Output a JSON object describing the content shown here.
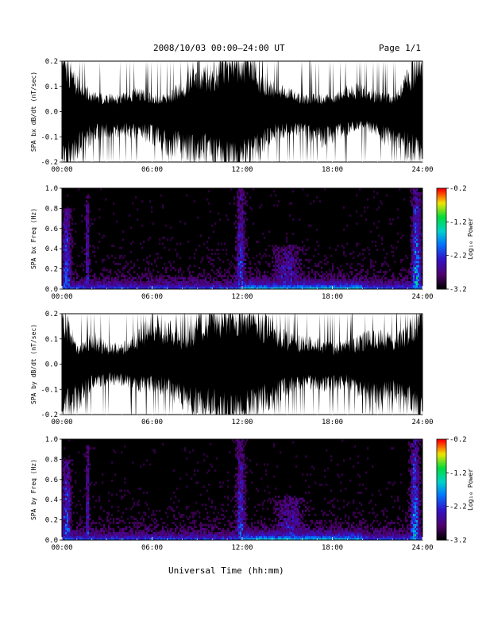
{
  "header": {
    "title": "2008/10/03  00:00–24:00 UT",
    "page": "Page 1/1"
  },
  "footer": {
    "xlabel": "Universal Time (hh:mm)"
  },
  "colors": {
    "background": "#000000",
    "waveform": "#ffffff"
  },
  "chart_data": [
    {
      "type": "line",
      "ylabel": "SPA bx dB/dt (nT/sec)",
      "xlim": [
        "00:00",
        "24:00"
      ],
      "ylim": [
        -0.2,
        0.2
      ],
      "x_ticks": [
        "00:00",
        "06:00",
        "12:00",
        "18:00",
        "24:00"
      ],
      "y_ticks": [
        "-0.2",
        "-0.1",
        "0.0",
        "0.1",
        "0.2"
      ],
      "envelope": {
        "x_hours": [
          0,
          1,
          2,
          3,
          4,
          5,
          6,
          7,
          8,
          9,
          10,
          11,
          12,
          13,
          14,
          15,
          16,
          17,
          18,
          19,
          20,
          21,
          22,
          23,
          24
        ],
        "upper": [
          0.2,
          0.11,
          0.06,
          0.05,
          0.05,
          0.07,
          0.05,
          0.05,
          0.09,
          0.15,
          0.13,
          0.2,
          0.2,
          0.13,
          0.09,
          0.07,
          0.05,
          0.05,
          0.05,
          0.08,
          0.08,
          0.06,
          0.05,
          0.12,
          0.2
        ],
        "lower": [
          -0.2,
          -0.15,
          -0.09,
          -0.08,
          -0.07,
          -0.08,
          -0.09,
          -0.13,
          -0.13,
          -0.15,
          -0.15,
          -0.2,
          -0.2,
          -0.14,
          -0.09,
          -0.07,
          -0.07,
          -0.11,
          -0.09,
          -0.07,
          -0.05,
          -0.08,
          -0.11,
          -0.13,
          -0.2
        ]
      }
    },
    {
      "type": "heatmap",
      "ylabel": "SPA bx Freq (Hz)",
      "xlim": [
        "00:00",
        "24:00"
      ],
      "ylim": [
        0,
        1.0
      ],
      "x_ticks": [
        "00:00",
        "06:00",
        "12:00",
        "18:00",
        "24:00"
      ],
      "y_ticks": [
        "0.0",
        "0.2",
        "0.4",
        "0.6",
        "0.8",
        "1.0"
      ],
      "colorbar": {
        "label": "Log₁₀ Power",
        "range": [
          -3.2,
          -0.2
        ],
        "ticks": [
          "-3.2",
          "-2.2",
          "-1.2",
          "-0.2"
        ]
      },
      "background_level": -3.2,
      "features": [
        {
          "hour": 0.3,
          "width": 0.6,
          "fmax": 0.8,
          "level": -1.8
        },
        {
          "hour": 1.7,
          "width": 0.25,
          "fmax": 0.95,
          "level": -2.1
        },
        {
          "hour": 11.9,
          "width": 0.6,
          "fmax": 1.0,
          "level": -2.0
        },
        {
          "hour": 15.0,
          "width": 2.0,
          "fmax": 0.45,
          "level": -2.2
        },
        {
          "hour": 23.6,
          "width": 0.6,
          "fmax": 1.0,
          "level": -1.5
        }
      ]
    },
    {
      "type": "line",
      "ylabel": "SPA by dB/dt (nT/sec)",
      "xlim": [
        "00:00",
        "24:00"
      ],
      "ylim": [
        -0.2,
        0.2
      ],
      "x_ticks": [
        "00:00",
        "06:00",
        "12:00",
        "18:00",
        "24:00"
      ],
      "y_ticks": [
        "-0.2",
        "-0.1",
        "0.0",
        "0.1",
        "0.2"
      ],
      "envelope": {
        "x_hours": [
          0,
          1,
          2,
          3,
          4,
          5,
          6,
          7,
          8,
          9,
          10,
          11,
          12,
          13,
          14,
          15,
          16,
          17,
          18,
          19,
          20,
          21,
          22,
          23,
          24
        ],
        "upper": [
          0.2,
          0.06,
          0.1,
          0.06,
          0.06,
          0.1,
          0.16,
          0.13,
          0.09,
          0.13,
          0.2,
          0.17,
          0.2,
          0.16,
          0.13,
          0.09,
          0.08,
          0.08,
          0.06,
          0.07,
          0.09,
          0.1,
          0.09,
          0.12,
          0.2
        ],
        "lower": [
          -0.2,
          -0.14,
          -0.07,
          -0.06,
          -0.06,
          -0.08,
          -0.08,
          -0.09,
          -0.13,
          -0.16,
          -0.16,
          -0.2,
          -0.2,
          -0.14,
          -0.13,
          -0.09,
          -0.07,
          -0.08,
          -0.08,
          -0.07,
          -0.11,
          -0.13,
          -0.11,
          -0.12,
          -0.2
        ]
      }
    },
    {
      "type": "heatmap",
      "ylabel": "SPA by Freq (Hz)",
      "xlim": [
        "00:00",
        "24:00"
      ],
      "ylim": [
        0,
        1.0
      ],
      "x_ticks": [
        "00:00",
        "06:00",
        "12:00",
        "18:00",
        "24:00"
      ],
      "y_ticks": [
        "0.0",
        "0.2",
        "0.4",
        "0.6",
        "0.8",
        "1.0"
      ],
      "colorbar": {
        "label": "Log₁₀ Power",
        "range": [
          -3.2,
          -0.2
        ],
        "ticks": [
          "-3.2",
          "-2.2",
          "-1.2",
          "-0.2"
        ]
      },
      "background_level": -3.2,
      "features": [
        {
          "hour": 0.3,
          "width": 0.6,
          "fmax": 0.8,
          "level": -1.8
        },
        {
          "hour": 1.7,
          "width": 0.25,
          "fmax": 0.95,
          "level": -2.1
        },
        {
          "hour": 11.9,
          "width": 0.6,
          "fmax": 1.0,
          "level": -2.0
        },
        {
          "hour": 15.2,
          "width": 2.0,
          "fmax": 0.45,
          "level": -2.2
        },
        {
          "hour": 23.5,
          "width": 0.6,
          "fmax": 1.0,
          "level": -1.5
        }
      ]
    }
  ]
}
